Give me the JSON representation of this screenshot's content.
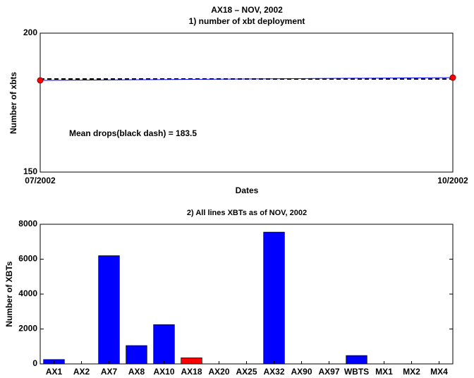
{
  "chart_data": [
    {
      "type": "line",
      "title": "AX18 – NOV, 2002",
      "subtitle": "1) number of xbt deployment",
      "ylabel": "Number of xbts",
      "xlabel": "Dates",
      "x": [
        "07/2002",
        "10/2002"
      ],
      "series": [
        {
          "color": "#0000ff",
          "marker_color": "#ff0000",
          "values": [
            183,
            184
          ]
        }
      ],
      "mean": 183.5,
      "mean_color": "#000000",
      "annotation": "Mean drops(black dash) = 183.5",
      "ylim": [
        150,
        200
      ],
      "yticks": [
        150,
        200
      ]
    },
    {
      "type": "bar",
      "title": "2) All lines XBTs as of NOV, 2002",
      "ylabel": "Number of XBTs",
      "categories": [
        "AX1",
        "AX2",
        "AX7",
        "AX8",
        "AX10",
        "AX18",
        "AX20",
        "AX25",
        "AX32",
        "AX90",
        "AX97",
        "WBTS",
        "MX1",
        "MX2",
        "MX4"
      ],
      "values": [
        250,
        0,
        6200,
        1050,
        2250,
        350,
        0,
        0,
        7550,
        0,
        0,
        480,
        0,
        0,
        0
      ],
      "colors": [
        "#0000ff",
        "#0000ff",
        "#0000ff",
        "#0000ff",
        "#0000ff",
        "#ff0000",
        "#0000ff",
        "#0000ff",
        "#0000ff",
        "#0000ff",
        "#0000ff",
        "#0000ff",
        "#0000ff",
        "#0000ff",
        "#0000ff"
      ],
      "ylim": [
        0,
        8000
      ],
      "yticks": [
        0,
        2000,
        4000,
        6000,
        8000
      ]
    }
  ]
}
